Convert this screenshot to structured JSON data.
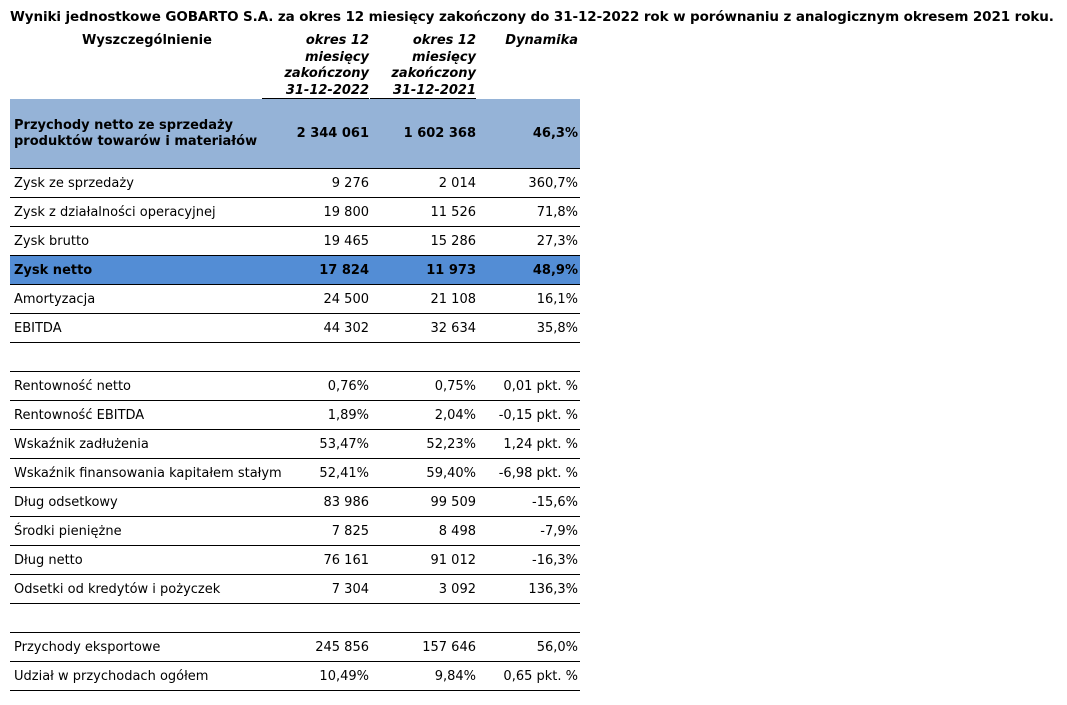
{
  "title": "Wyniki jednostkowe GOBARTO S.A. za okres 12 miesięcy zakończony do 31-12-2022 rok w porównaniu z analogicznym okresem 2021 roku.",
  "headers": {
    "label": "Wyszczególnienie",
    "col1": [
      "okres 12",
      "miesięcy",
      "zakończony",
      "31-12-2022"
    ],
    "col2": [
      "okres 12",
      "miesięcy",
      "zakończony",
      "31-12-2021"
    ],
    "col3": "Dynamika"
  },
  "rows": [
    {
      "label": "Przychody netto ze sprzedaży produktów towarów i materiałów",
      "v1": "2 344 061",
      "v2": "1 602 368",
      "v3": "46,3%"
    },
    {
      "label": "Zysk ze sprzedaży",
      "v1": "9 276",
      "v2": "2 014",
      "v3": "360,7%"
    },
    {
      "label": "Zysk z działalności operacyjnej",
      "v1": "19 800",
      "v2": "11 526",
      "v3": "71,8%"
    },
    {
      "label": "Zysk brutto",
      "v1": "19 465",
      "v2": "15 286",
      "v3": "27,3%"
    },
    {
      "label": "Zysk netto",
      "v1": "17 824",
      "v2": "11 973",
      "v3": "48,9%"
    },
    {
      "label": "Amortyzacja",
      "v1": "24 500",
      "v2": "21 108",
      "v3": "16,1%"
    },
    {
      "label": "EBITDA",
      "v1": "44 302",
      "v2": "32 634",
      "v3": "35,8%"
    },
    {
      "label": "Rentowność netto",
      "v1": "0,76%",
      "v2": "0,75%",
      "v3": "0,01 pkt. %"
    },
    {
      "label": "Rentowność EBITDA",
      "v1": "1,89%",
      "v2": "2,04%",
      "v3": "-0,15 pkt. %"
    },
    {
      "label": "Wskaźnik zadłużenia",
      "v1": "53,47%",
      "v2": "52,23%",
      "v3": "1,24 pkt. %"
    },
    {
      "label": "Wskaźnik finansowania kapitałem stałym",
      "v1": "52,41%",
      "v2": "59,40%",
      "v3": "-6,98 pkt. %"
    },
    {
      "label": "Dług odsetkowy",
      "v1": "83 986",
      "v2": "99 509",
      "v3": "-15,6%"
    },
    {
      "label": "Środki pieniężne",
      "v1": "7 825",
      "v2": "8 498",
      "v3": "-7,9%"
    },
    {
      "label": "Dług netto",
      "v1": "76 161",
      "v2": "91 012",
      "v3": "-16,3%"
    },
    {
      "label": "Odsetki od kredytów i pożyczek",
      "v1": "7 304",
      "v2": "3 092",
      "v3": "136,3%"
    },
    {
      "label": "Przychody eksportowe",
      "v1": "245 856",
      "v2": "157 646",
      "v3": "56,0%"
    },
    {
      "label": "Udział w przychodach ogółem",
      "v1": "10,49%",
      "v2": "9,84%",
      "v3": "0,65 pkt. %"
    }
  ],
  "colors": {
    "highlight_light": "#95b3d7",
    "highlight_dark": "#538dd5"
  }
}
